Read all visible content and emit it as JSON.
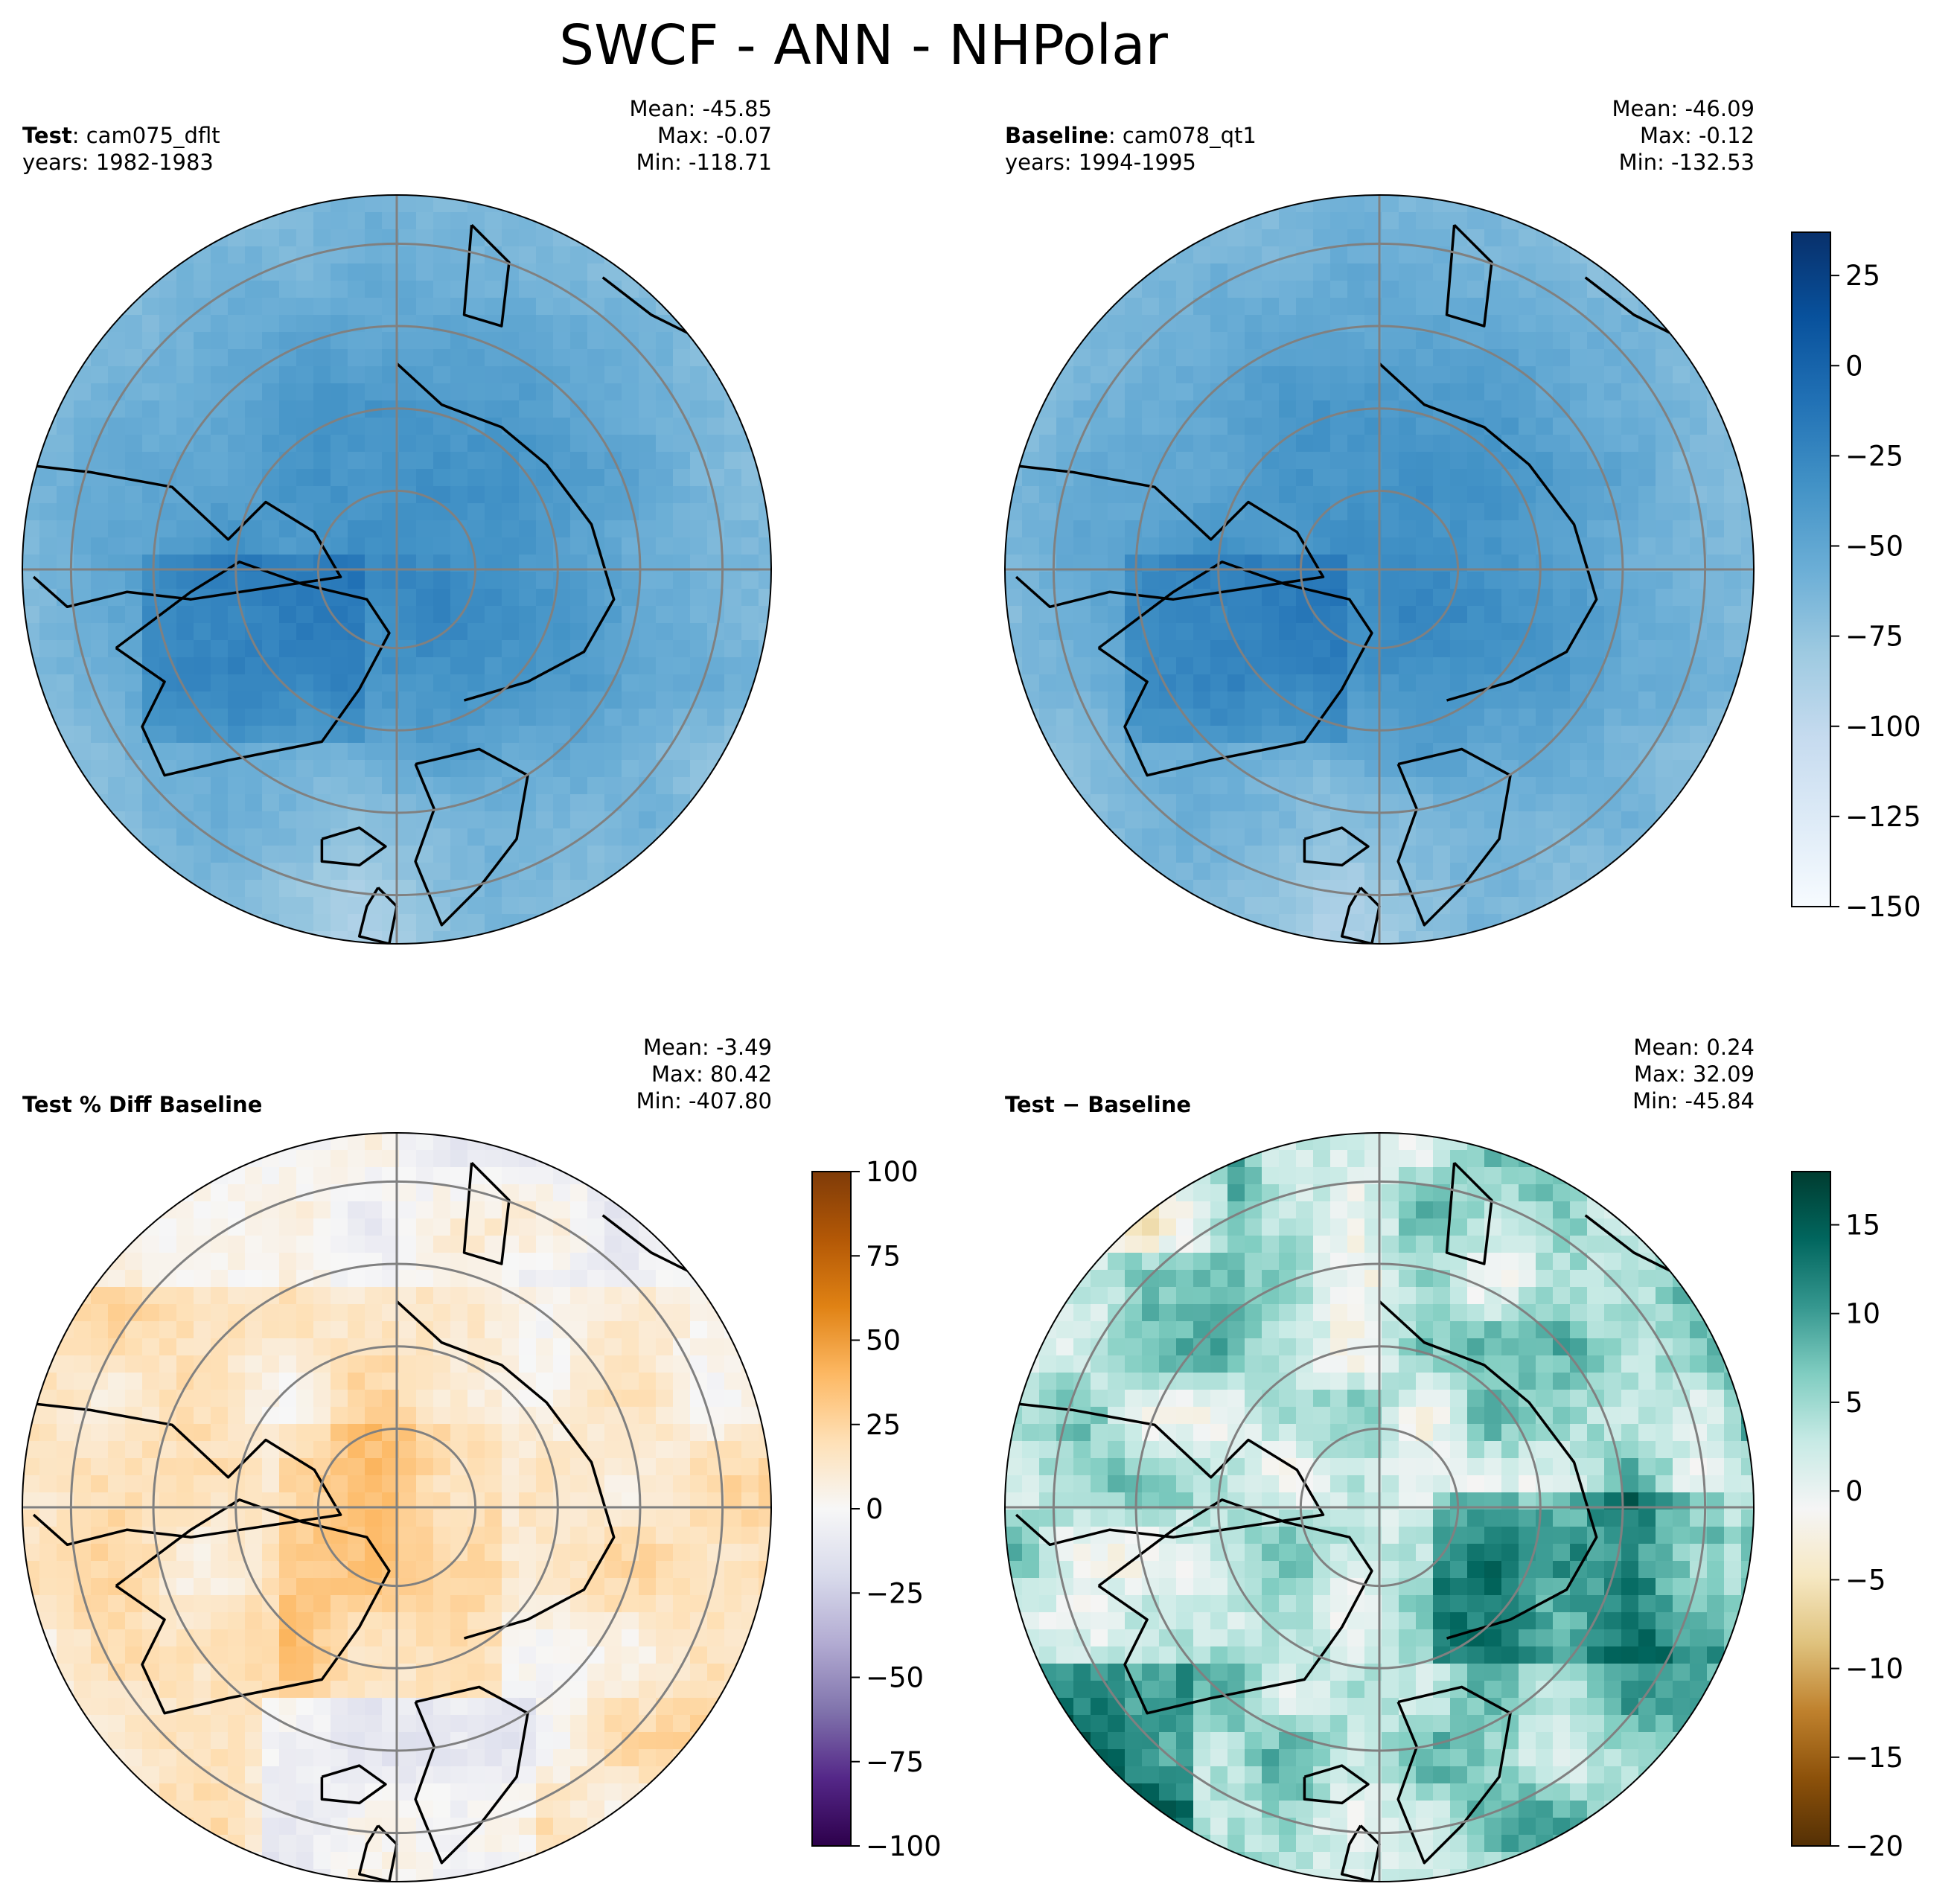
{
  "figure": {
    "title": "SWCF - ANN - NHPolar"
  },
  "panels": {
    "test": {
      "label_bold": "Test",
      "case": "cam075_dflt",
      "years_label": "years: 1982-1983",
      "mean": "Mean: -45.85",
      "max": "Max: -0.07",
      "min": "Min: -118.71"
    },
    "baseline": {
      "label_bold": "Baseline",
      "case": "cam078_qt1",
      "years_label": "years: 1994-1995",
      "mean": "Mean: -46.09",
      "max": "Max: -0.12",
      "min": "Min: -132.53"
    },
    "pctdiff": {
      "label_bold": "Test % Diff Baseline",
      "mean": "Mean: -3.49",
      "max": "Max: 80.42",
      "min": "Min: -407.80"
    },
    "diff": {
      "label_bold": "Test − Baseline",
      "mean": "Mean:  0.24",
      "max": "Max: 32.09",
      "min": "Min: -45.84"
    }
  },
  "chart_data": [
    {
      "type": "heatmap",
      "projection": "north-polar-stereographic",
      "title": "Test: cam075_dflt",
      "colormap": "Blues",
      "colorbar_range": [
        -150,
        37
      ],
      "colorbar_ticks": [
        25,
        0,
        -25,
        -50,
        -75,
        -100,
        -125,
        -150
      ],
      "stats": {
        "mean": -45.85,
        "max": -0.07,
        "min": -118.71
      }
    },
    {
      "type": "heatmap",
      "projection": "north-polar-stereographic",
      "title": "Baseline: cam078_qt1",
      "colormap": "Blues",
      "colorbar_range": [
        -150,
        37
      ],
      "colorbar_ticks": [
        25,
        0,
        -25,
        -50,
        -75,
        -100,
        -125,
        -150
      ],
      "stats": {
        "mean": -46.09,
        "max": -0.12,
        "min": -132.53
      }
    },
    {
      "type": "heatmap",
      "projection": "north-polar-stereographic",
      "title": "Test % Diff Baseline",
      "colormap": "PuOr",
      "colorbar_range": [
        -100,
        100
      ],
      "colorbar_ticks": [
        100,
        75,
        50,
        25,
        0,
        -25,
        -50,
        -75,
        -100
      ],
      "stats": {
        "mean": -3.49,
        "max": 80.42,
        "min": -407.8
      }
    },
    {
      "type": "heatmap",
      "projection": "north-polar-stereographic",
      "title": "Test - Baseline",
      "colormap": "BrBG",
      "colorbar_range": [
        -20,
        18
      ],
      "colorbar_ticks": [
        15,
        10,
        5,
        0,
        -5,
        -10,
        -15,
        -20
      ],
      "stats": {
        "mean": 0.24,
        "max": 32.09,
        "min": -45.84
      }
    }
  ],
  "colors": {
    "blues": [
      "#f7fbff",
      "#deebf7",
      "#c6dbef",
      "#9ecae1",
      "#6baed6",
      "#4292c6",
      "#2171b5",
      "#08519c",
      "#08306b"
    ],
    "puor": [
      "#2d004b",
      "#542788",
      "#8073ac",
      "#b2abd2",
      "#d8daeb",
      "#f7f7f7",
      "#fee0b6",
      "#fdb863",
      "#e08214",
      "#b35806",
      "#7f3b08"
    ],
    "brbg": [
      "#543005",
      "#8c510a",
      "#bf812d",
      "#dfc27d",
      "#f6e8c3",
      "#f5f5f5",
      "#c7eae5",
      "#80cdc1",
      "#35978f",
      "#01665e",
      "#003c30"
    ],
    "grid": "#808080",
    "coast": "#000000"
  }
}
